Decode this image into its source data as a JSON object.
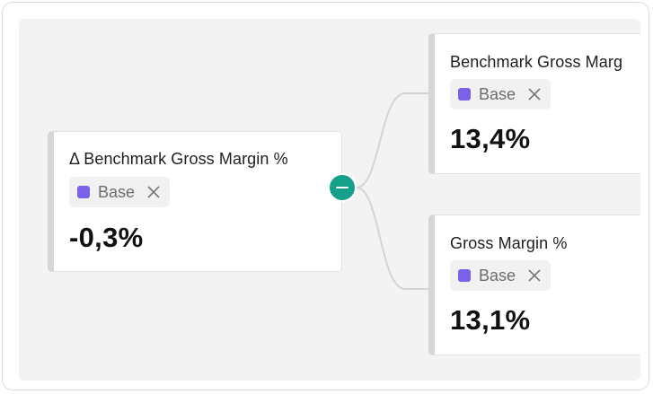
{
  "accent_color": "#14a08b",
  "tag_color": "#7b61e8",
  "root_node": {
    "title": "Δ Benchmark Gross Margin %",
    "tag": "Base",
    "value": "-0,3%",
    "collapse_icon": "minus-icon"
  },
  "children": [
    {
      "title": "Benchmark Gross Marg",
      "tag": "Base",
      "value": "13,4%"
    },
    {
      "title": "Gross Margin %",
      "tag": "Base",
      "value": "13,1%"
    }
  ],
  "tag_remove_icon": "close-icon"
}
